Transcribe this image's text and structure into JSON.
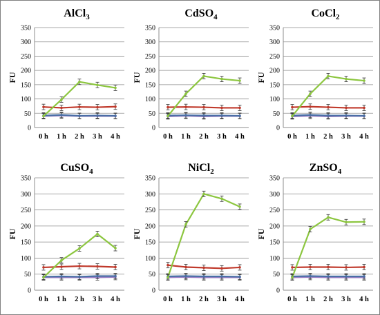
{
  "chart_data": [
    {
      "type": "line",
      "title": {
        "main": "AlCl",
        "sub": "3"
      },
      "ylabel": "FU",
      "categories": [
        "0 h",
        "1 h",
        "2 h",
        "3 h",
        "4 h"
      ],
      "ylim": [
        0,
        350
      ],
      "yticks": [
        0,
        50,
        100,
        150,
        200,
        250,
        300,
        350
      ],
      "series": [
        {
          "color": "#8cc63f",
          "values": [
            40,
            98,
            160,
            149,
            139
          ]
        },
        {
          "color": "#c0392b",
          "values": [
            72,
            69,
            72,
            71,
            73
          ]
        },
        {
          "color": "#4a6fa5",
          "values": [
            42,
            44,
            41,
            42,
            41
          ]
        },
        {
          "color": "#9b7fc4",
          "values": [
            40,
            42,
            40,
            40,
            40
          ]
        }
      ]
    },
    {
      "type": "line",
      "title": {
        "main": "CdSO",
        "sub": "4"
      },
      "ylabel": "FU",
      "categories": [
        "0 h",
        "1 h",
        "2 h",
        "3 h",
        "4 h"
      ],
      "ylim": [
        0,
        350
      ],
      "yticks": [
        0,
        50,
        100,
        150,
        200,
        250,
        300,
        350
      ],
      "series": [
        {
          "color": "#8cc63f",
          "values": [
            40,
            118,
            180,
            170,
            164
          ]
        },
        {
          "color": "#c0392b",
          "values": [
            71,
            72,
            71,
            69,
            69
          ]
        },
        {
          "color": "#4a6fa5",
          "values": [
            42,
            43,
            42,
            42,
            41
          ]
        },
        {
          "color": "#9b7fc4",
          "values": [
            39,
            41,
            39,
            40,
            40
          ]
        }
      ]
    },
    {
      "type": "line",
      "title": {
        "main": "CoCl",
        "sub": "2"
      },
      "ylabel": "FU",
      "categories": [
        "0 h",
        "1 h",
        "2 h",
        "3 h",
        "4 h"
      ],
      "ylim": [
        0,
        350
      ],
      "yticks": [
        0,
        50,
        100,
        150,
        200,
        250,
        300,
        350
      ],
      "series": [
        {
          "color": "#8cc63f",
          "values": [
            40,
            118,
            180,
            170,
            164
          ]
        },
        {
          "color": "#c0392b",
          "values": [
            71,
            73,
            71,
            69,
            69
          ]
        },
        {
          "color": "#4a6fa5",
          "values": [
            42,
            44,
            42,
            42,
            41
          ]
        },
        {
          "color": "#9b7fc4",
          "values": [
            39,
            41,
            39,
            40,
            40
          ]
        }
      ]
    },
    {
      "type": "line",
      "title": {
        "main": "CuSO",
        "sub": "4"
      },
      "ylabel": "FU",
      "categories": [
        "0 h",
        "1 h",
        "2 h",
        "3 h",
        "4 h"
      ],
      "ylim": [
        0,
        350
      ],
      "yticks": [
        0,
        50,
        100,
        150,
        200,
        250,
        300,
        350
      ],
      "series": [
        {
          "color": "#8cc63f",
          "values": [
            40,
            93,
            130,
            175,
            131
          ]
        },
        {
          "color": "#c0392b",
          "values": [
            71,
            73,
            75,
            74,
            72
          ]
        },
        {
          "color": "#4a6fa5",
          "values": [
            42,
            43,
            42,
            44,
            44
          ]
        },
        {
          "color": "#9b7fc4",
          "values": [
            40,
            40,
            40,
            40,
            41
          ]
        }
      ]
    },
    {
      "type": "line",
      "title": {
        "main": "NiCl",
        "sub": "2"
      },
      "ylabel": "FU",
      "categories": [
        "0 h",
        "1 h",
        "2 h",
        "3 h",
        "4 h"
      ],
      "ylim": [
        0,
        350
      ],
      "yticks": [
        0,
        50,
        100,
        150,
        200,
        250,
        300,
        350
      ],
      "series": [
        {
          "color": "#8cc63f",
          "values": [
            40,
            205,
            300,
            285,
            260
          ]
        },
        {
          "color": "#c0392b",
          "values": [
            78,
            72,
            70,
            68,
            71
          ]
        },
        {
          "color": "#4a6fa5",
          "values": [
            43,
            44,
            43,
            43,
            42
          ]
        },
        {
          "color": "#9b7fc4",
          "values": [
            40,
            41,
            40,
            40,
            40
          ]
        }
      ]
    },
    {
      "type": "line",
      "title": {
        "main": "ZnSO",
        "sub": "4"
      },
      "ylabel": "FU",
      "categories": [
        "0 h",
        "1 h",
        "2 h",
        "3 h",
        "4 h"
      ],
      "ylim": [
        0,
        350
      ],
      "yticks": [
        0,
        50,
        100,
        150,
        200,
        250,
        300,
        350
      ],
      "series": [
        {
          "color": "#8cc63f",
          "values": [
            40,
            190,
            227,
            212,
            213
          ]
        },
        {
          "color": "#c0392b",
          "values": [
            71,
            72,
            72,
            71,
            72
          ]
        },
        {
          "color": "#4a6fa5",
          "values": [
            43,
            44,
            43,
            43,
            43
          ]
        },
        {
          "color": "#9b7fc4",
          "values": [
            40,
            41,
            40,
            40,
            40
          ]
        }
      ]
    }
  ]
}
